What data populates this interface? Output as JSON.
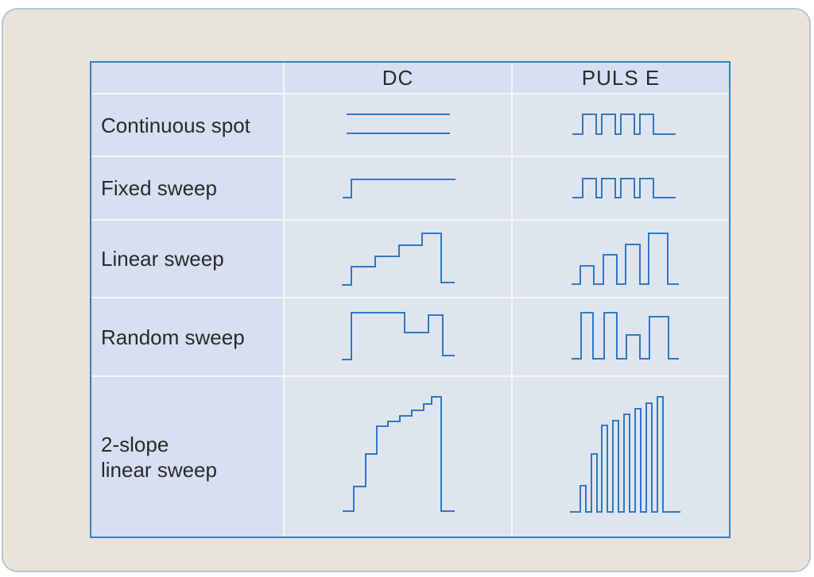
{
  "table": {
    "header": {
      "blank": "",
      "col_dc": "DC",
      "col_pulse": "PULS E"
    },
    "rows": [
      {
        "label": "Continuous spot"
      },
      {
        "label": "Fixed sweep"
      },
      {
        "label": "Linear sweep"
      },
      {
        "label": "Random sweep"
      },
      {
        "label_line1": "2-slope",
        "label_line2": "linear sweep"
      }
    ]
  },
  "colors": {
    "frame_background": "#e8e4d9",
    "frame_border": "#b9c4d4",
    "table_border": "#3a7fc0",
    "header_fill": "#d7dff1",
    "cell_fill": "#dfe5ef",
    "waveform_stroke": "#2f78c4"
  }
}
